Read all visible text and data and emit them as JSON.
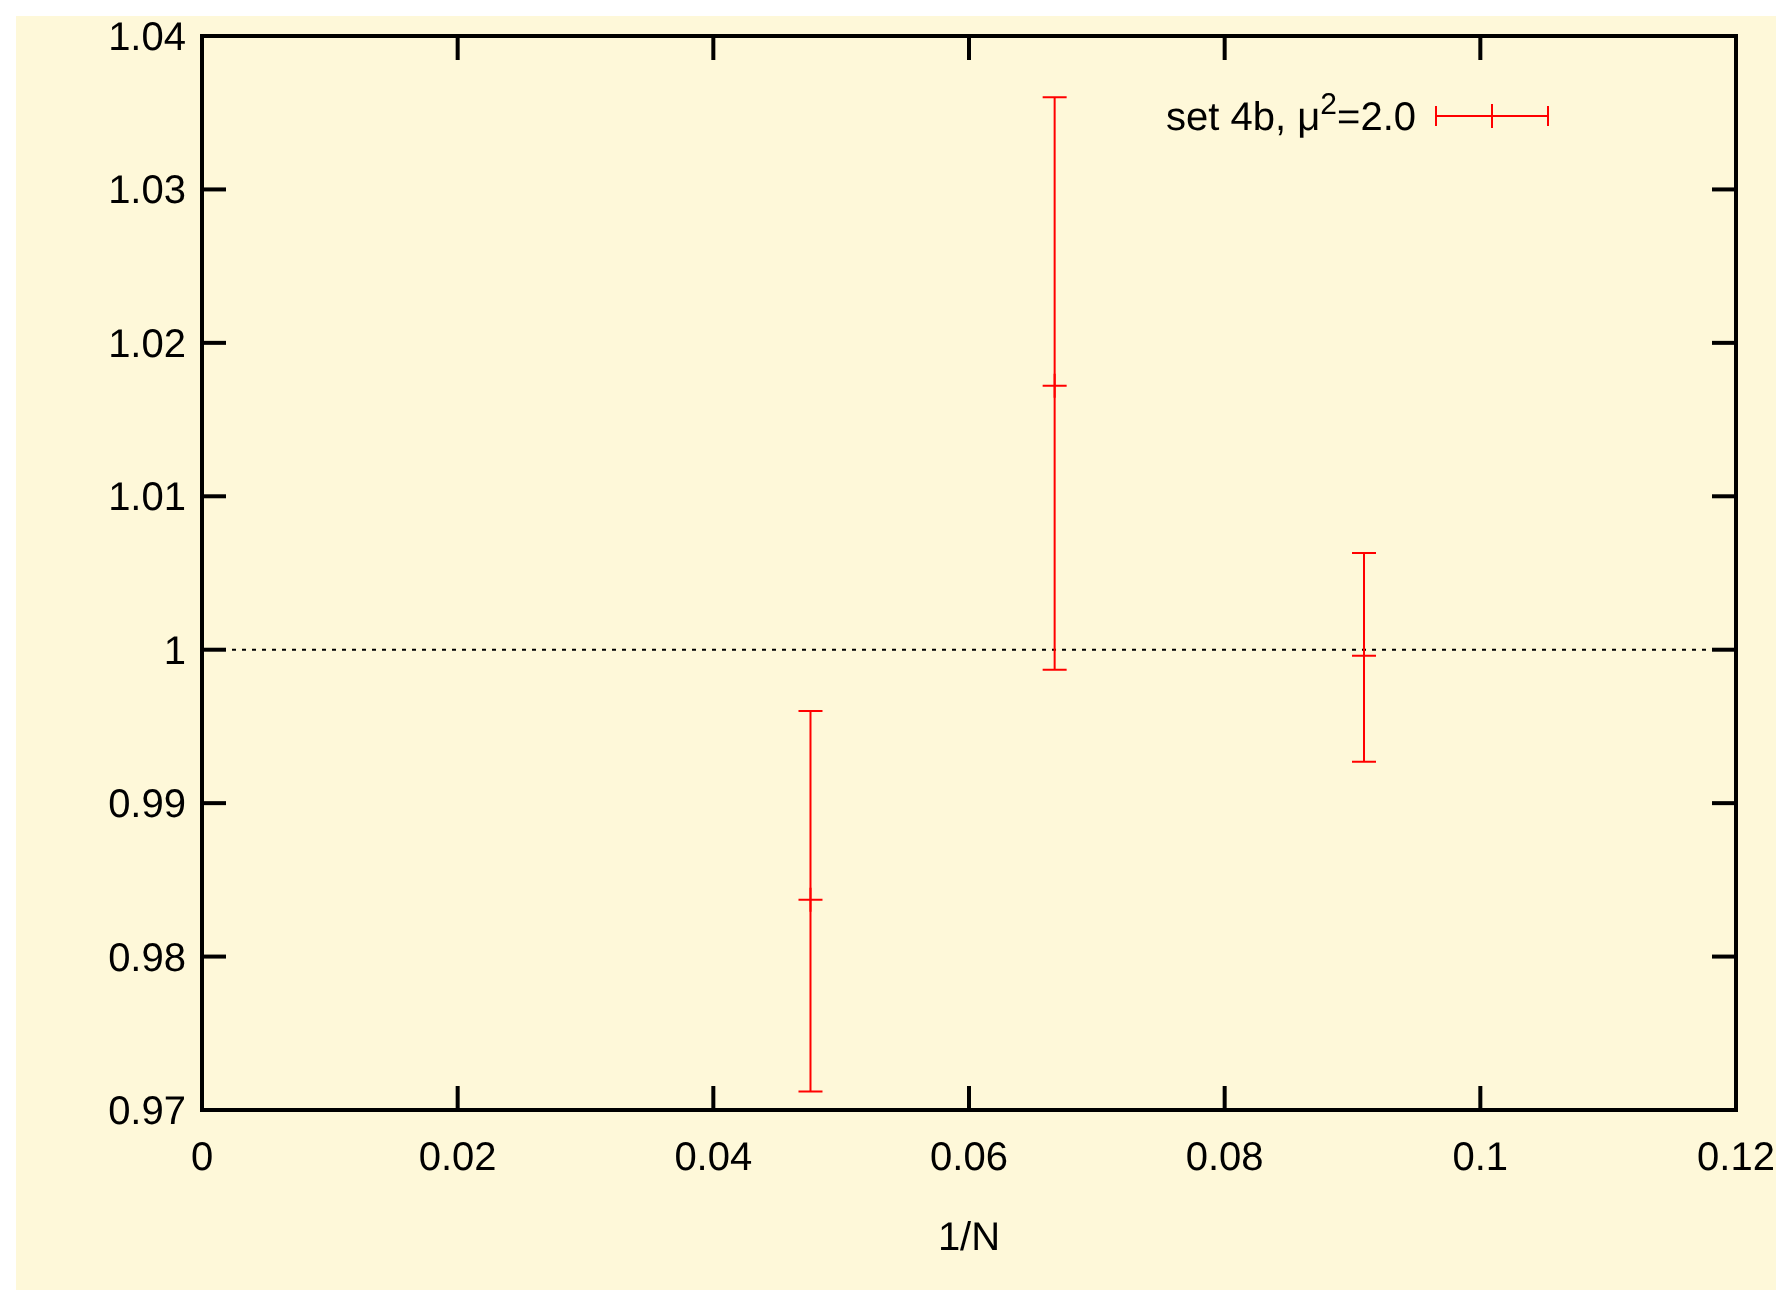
{
  "chart_data": {
    "type": "scatter",
    "xlabel": "1/N",
    "x": [
      0.0476,
      0.0667,
      0.0909
    ],
    "series": [
      {
        "name": "set 4b, μ$^{2}$=2.0",
        "color": "#ff0000",
        "values": [
          0.9837,
          1.0172,
          0.9996
        ],
        "errors": [
          [
            0.9712,
            0.996
          ],
          [
            0.9987,
            1.036
          ],
          [
            0.9927,
            1.0063
          ]
        ]
      }
    ],
    "xlim": [
      0,
      0.12
    ],
    "xticks": [
      0,
      0.02,
      0.04,
      0.06,
      0.08,
      0.1,
      0.12
    ],
    "ylim": [
      0.97,
      1.04
    ],
    "yticks": [
      0.97,
      0.98,
      0.99,
      1,
      1.01,
      1.02,
      1.03,
      1.04
    ],
    "ref_lines": [
      {
        "axis": "y",
        "value": 1,
        "color": "#000000",
        "line_style": "dotted"
      }
    ],
    "legend": "top right",
    "marker": "cross",
    "grid": false
  }
}
